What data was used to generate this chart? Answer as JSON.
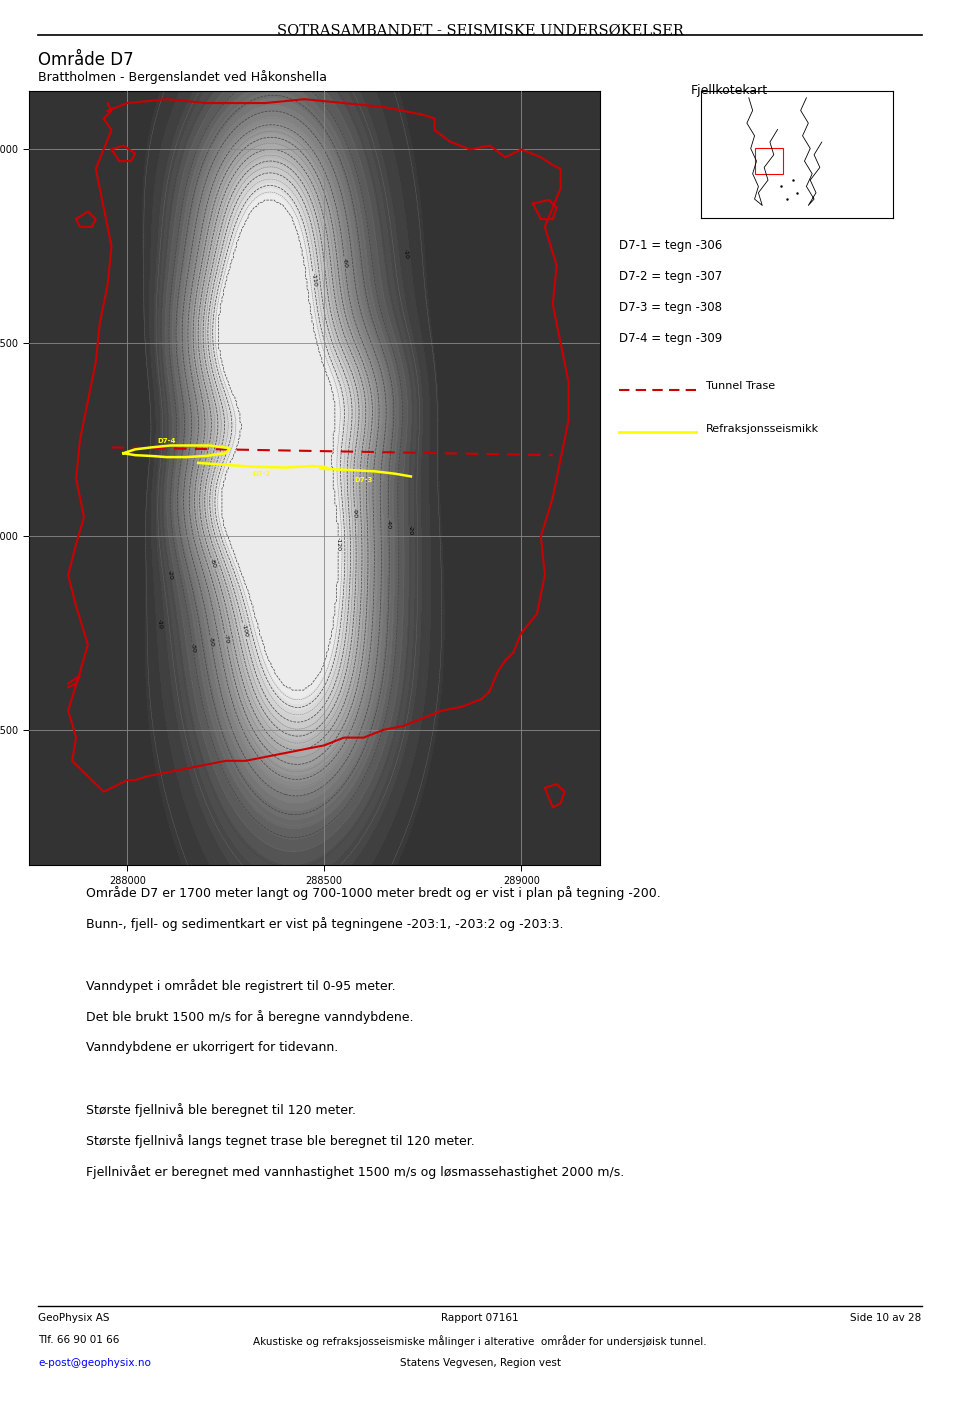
{
  "title": "Sotrasambandet - Seismiske undersøkelser",
  "area_title": "Område D7",
  "subtitle": "Brattholmen - Bergenslandet ved Håkonshella",
  "map_label": "Fjellkotekart",
  "legend_entries": [
    "D7-1 = tegn -306",
    "D7-2 = tegn -307",
    "D7-3 = tegn -308",
    "D7-4 = tegn -309"
  ],
  "legend_tunnel": "Tunnel Trase",
  "legend_refrak": "Refraksjonsseismikk",
  "body_text1": "Område D7 er 1700 meter langt og 700-1000 meter bredt og er vist i plan på tegning -200.",
  "body_text2": "Bunn-, fjell- og sedimentkart er vist på tegningene -203:1, -203:2 og -203:3.",
  "body_text3": "Vanndypet i området ble registrert til 0-95 meter.",
  "body_text4": "Det ble brukt 1500 m/s for å beregne vanndybdene.",
  "body_text5": "Vanndybdene er ukorrigert for tidevann.",
  "body_text6": "Største fjellnivå ble beregnet til 120 meter.",
  "body_text7": "Største fjellnivå langs tegnet trase ble beregnet til 120 meter.",
  "body_text8": "Fjellnivået er beregnet med vannhastighet 1500 m/s og løsmassehastighet 2000 m/s.",
  "footer_left1": "GeoPhysix AS",
  "footer_left2": "Tlf. 66 90 01 66",
  "footer_left3": "e-post@geophysix.no",
  "footer_center1": "Rapport 07161",
  "footer_center2": "Akustiske og refraksjosseismiske målinger i alterative  områder for undersjøisk tunnel.",
  "footer_center3": "Statens Vegvesen, Region vest",
  "footer_right": "Side 10 av 28",
  "bg_color": "#ffffff",
  "map_bg": "#d8d8d8",
  "red_outline": "#cc0000",
  "dashed_red": "#cc0000"
}
